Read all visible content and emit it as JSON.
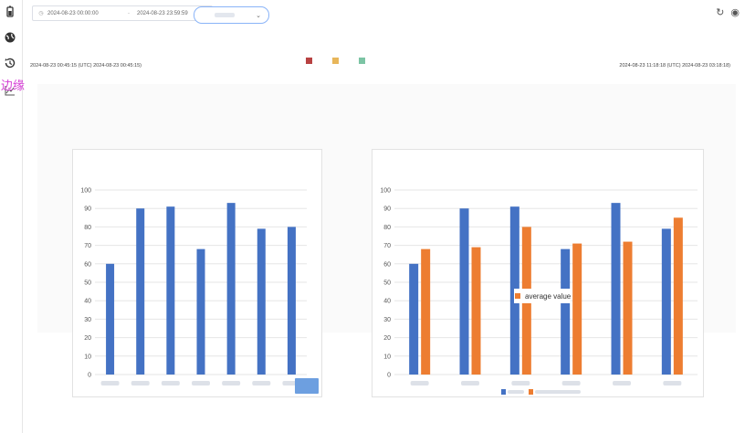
{
  "sidebar": {
    "items": [
      {
        "icon": "battery-icon"
      },
      {
        "icon": "globe-icon"
      },
      {
        "icon": "history-icon"
      },
      {
        "icon": "chart-line-icon"
      }
    ],
    "label": "边缘"
  },
  "toolbar": {
    "date_start": "2024-08-23 00:00:00",
    "date_separator": "-",
    "date_end": "2024-08-23 23:59:59",
    "refresh_icon": "refresh-icon",
    "settings_icon": "user-icon"
  },
  "main": {
    "ts_left": "2024-08-23 00:45:15  (UTC)  2024-08-23 00:45:15)",
    "ts_right": "2024-08-23 11:18:18  (UTC)  2024-08-23 03:18:18)",
    "legend_colors": [
      "#b84242",
      "#e8b65a",
      "#7cc4a4"
    ]
  },
  "chart_data": [
    {
      "type": "bar",
      "ylim": [
        0,
        100
      ],
      "yticks": [
        0,
        10,
        20,
        30,
        40,
        50,
        60,
        70,
        80,
        90,
        100
      ],
      "categories": [
        "",
        "",
        "",
        "",
        "",
        "",
        ""
      ],
      "series": [
        {
          "values": [
            60,
            90,
            91,
            68,
            93,
            79,
            80
          ],
          "color": "#4472c4"
        }
      ]
    },
    {
      "type": "bar",
      "ylim": [
        0,
        100
      ],
      "yticks": [
        0,
        10,
        20,
        30,
        40,
        50,
        60,
        70,
        80,
        90,
        100
      ],
      "categories": [
        "",
        "",
        "",
        "",
        "",
        ""
      ],
      "series": [
        {
          "values": [
            60,
            90,
            91,
            68,
            93,
            79
          ],
          "color": "#4472c4"
        },
        {
          "name": "average value",
          "values": [
            68,
            69,
            80,
            71,
            72,
            85
          ],
          "color": "#ed7d31"
        }
      ]
    }
  ]
}
